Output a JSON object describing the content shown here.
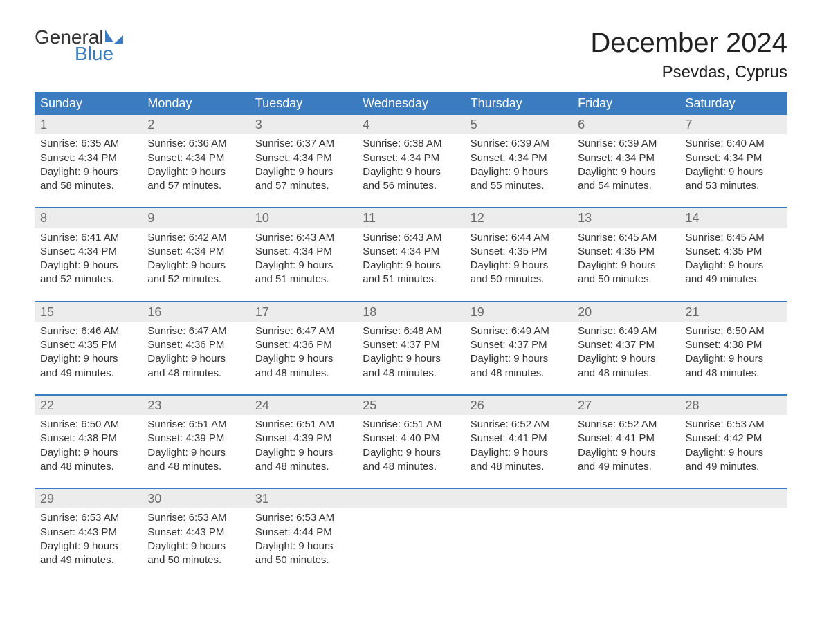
{
  "logo": {
    "word1": "General",
    "word2": "Blue"
  },
  "title": "December 2024",
  "location": "Psevdas, Cyprus",
  "colors": {
    "header_bg": "#3b7bbf",
    "header_fg": "#ffffff",
    "daynum_bg": "#ececec",
    "daynum_fg": "#6a6a6a",
    "text": "#333333",
    "rule": "#3b7bbf",
    "logo_blue": "#3b7bbf"
  },
  "day_labels": [
    "Sunday",
    "Monday",
    "Tuesday",
    "Wednesday",
    "Thursday",
    "Friday",
    "Saturday"
  ],
  "weeks": [
    [
      {
        "n": "1",
        "sr": "Sunrise: 6:35 AM",
        "ss": "Sunset: 4:34 PM",
        "d1": "Daylight: 9 hours",
        "d2": "and 58 minutes."
      },
      {
        "n": "2",
        "sr": "Sunrise: 6:36 AM",
        "ss": "Sunset: 4:34 PM",
        "d1": "Daylight: 9 hours",
        "d2": "and 57 minutes."
      },
      {
        "n": "3",
        "sr": "Sunrise: 6:37 AM",
        "ss": "Sunset: 4:34 PM",
        "d1": "Daylight: 9 hours",
        "d2": "and 57 minutes."
      },
      {
        "n": "4",
        "sr": "Sunrise: 6:38 AM",
        "ss": "Sunset: 4:34 PM",
        "d1": "Daylight: 9 hours",
        "d2": "and 56 minutes."
      },
      {
        "n": "5",
        "sr": "Sunrise: 6:39 AM",
        "ss": "Sunset: 4:34 PM",
        "d1": "Daylight: 9 hours",
        "d2": "and 55 minutes."
      },
      {
        "n": "6",
        "sr": "Sunrise: 6:39 AM",
        "ss": "Sunset: 4:34 PM",
        "d1": "Daylight: 9 hours",
        "d2": "and 54 minutes."
      },
      {
        "n": "7",
        "sr": "Sunrise: 6:40 AM",
        "ss": "Sunset: 4:34 PM",
        "d1": "Daylight: 9 hours",
        "d2": "and 53 minutes."
      }
    ],
    [
      {
        "n": "8",
        "sr": "Sunrise: 6:41 AM",
        "ss": "Sunset: 4:34 PM",
        "d1": "Daylight: 9 hours",
        "d2": "and 52 minutes."
      },
      {
        "n": "9",
        "sr": "Sunrise: 6:42 AM",
        "ss": "Sunset: 4:34 PM",
        "d1": "Daylight: 9 hours",
        "d2": "and 52 minutes."
      },
      {
        "n": "10",
        "sr": "Sunrise: 6:43 AM",
        "ss": "Sunset: 4:34 PM",
        "d1": "Daylight: 9 hours",
        "d2": "and 51 minutes."
      },
      {
        "n": "11",
        "sr": "Sunrise: 6:43 AM",
        "ss": "Sunset: 4:34 PM",
        "d1": "Daylight: 9 hours",
        "d2": "and 51 minutes."
      },
      {
        "n": "12",
        "sr": "Sunrise: 6:44 AM",
        "ss": "Sunset: 4:35 PM",
        "d1": "Daylight: 9 hours",
        "d2": "and 50 minutes."
      },
      {
        "n": "13",
        "sr": "Sunrise: 6:45 AM",
        "ss": "Sunset: 4:35 PM",
        "d1": "Daylight: 9 hours",
        "d2": "and 50 minutes."
      },
      {
        "n": "14",
        "sr": "Sunrise: 6:45 AM",
        "ss": "Sunset: 4:35 PM",
        "d1": "Daylight: 9 hours",
        "d2": "and 49 minutes."
      }
    ],
    [
      {
        "n": "15",
        "sr": "Sunrise: 6:46 AM",
        "ss": "Sunset: 4:35 PM",
        "d1": "Daylight: 9 hours",
        "d2": "and 49 minutes."
      },
      {
        "n": "16",
        "sr": "Sunrise: 6:47 AM",
        "ss": "Sunset: 4:36 PM",
        "d1": "Daylight: 9 hours",
        "d2": "and 48 minutes."
      },
      {
        "n": "17",
        "sr": "Sunrise: 6:47 AM",
        "ss": "Sunset: 4:36 PM",
        "d1": "Daylight: 9 hours",
        "d2": "and 48 minutes."
      },
      {
        "n": "18",
        "sr": "Sunrise: 6:48 AM",
        "ss": "Sunset: 4:37 PM",
        "d1": "Daylight: 9 hours",
        "d2": "and 48 minutes."
      },
      {
        "n": "19",
        "sr": "Sunrise: 6:49 AM",
        "ss": "Sunset: 4:37 PM",
        "d1": "Daylight: 9 hours",
        "d2": "and 48 minutes."
      },
      {
        "n": "20",
        "sr": "Sunrise: 6:49 AM",
        "ss": "Sunset: 4:37 PM",
        "d1": "Daylight: 9 hours",
        "d2": "and 48 minutes."
      },
      {
        "n": "21",
        "sr": "Sunrise: 6:50 AM",
        "ss": "Sunset: 4:38 PM",
        "d1": "Daylight: 9 hours",
        "d2": "and 48 minutes."
      }
    ],
    [
      {
        "n": "22",
        "sr": "Sunrise: 6:50 AM",
        "ss": "Sunset: 4:38 PM",
        "d1": "Daylight: 9 hours",
        "d2": "and 48 minutes."
      },
      {
        "n": "23",
        "sr": "Sunrise: 6:51 AM",
        "ss": "Sunset: 4:39 PM",
        "d1": "Daylight: 9 hours",
        "d2": "and 48 minutes."
      },
      {
        "n": "24",
        "sr": "Sunrise: 6:51 AM",
        "ss": "Sunset: 4:39 PM",
        "d1": "Daylight: 9 hours",
        "d2": "and 48 minutes."
      },
      {
        "n": "25",
        "sr": "Sunrise: 6:51 AM",
        "ss": "Sunset: 4:40 PM",
        "d1": "Daylight: 9 hours",
        "d2": "and 48 minutes."
      },
      {
        "n": "26",
        "sr": "Sunrise: 6:52 AM",
        "ss": "Sunset: 4:41 PM",
        "d1": "Daylight: 9 hours",
        "d2": "and 48 minutes."
      },
      {
        "n": "27",
        "sr": "Sunrise: 6:52 AM",
        "ss": "Sunset: 4:41 PM",
        "d1": "Daylight: 9 hours",
        "d2": "and 49 minutes."
      },
      {
        "n": "28",
        "sr": "Sunrise: 6:53 AM",
        "ss": "Sunset: 4:42 PM",
        "d1": "Daylight: 9 hours",
        "d2": "and 49 minutes."
      }
    ],
    [
      {
        "n": "29",
        "sr": "Sunrise: 6:53 AM",
        "ss": "Sunset: 4:43 PM",
        "d1": "Daylight: 9 hours",
        "d2": "and 49 minutes."
      },
      {
        "n": "30",
        "sr": "Sunrise: 6:53 AM",
        "ss": "Sunset: 4:43 PM",
        "d1": "Daylight: 9 hours",
        "d2": "and 50 minutes."
      },
      {
        "n": "31",
        "sr": "Sunrise: 6:53 AM",
        "ss": "Sunset: 4:44 PM",
        "d1": "Daylight: 9 hours",
        "d2": "and 50 minutes."
      },
      null,
      null,
      null,
      null
    ]
  ]
}
